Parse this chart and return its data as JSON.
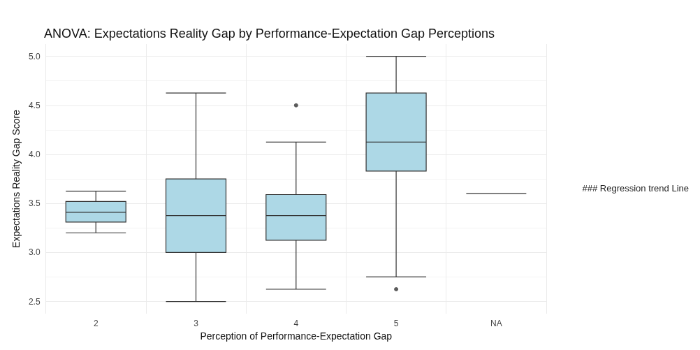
{
  "chart_data": {
    "type": "box",
    "title": "ANOVA: Expectations Reality Gap by Performance-Expectation Gap Perceptions",
    "xlabel": "Perception of Performance-Expectation Gap",
    "ylabel": "Expectations Reality Gap Score",
    "categories": [
      "2",
      "3",
      "4",
      "5",
      "NA"
    ],
    "boxes": [
      {
        "low": 3.2,
        "q1": 3.31,
        "median": 3.41,
        "q3": 3.52,
        "high": 3.625
      },
      {
        "low": 2.5,
        "q1": 3.0,
        "median": 3.375,
        "q3": 3.75,
        "high": 4.625
      },
      {
        "low": 2.625,
        "q1": 3.125,
        "median": 3.375,
        "q3": 3.59,
        "high": 4.125,
        "outliers": [
          4.5
        ]
      },
      {
        "low": 2.75,
        "q1": 3.83,
        "median": 4.125,
        "q3": 4.625,
        "high": 5.0,
        "outliers": [
          2.625
        ]
      },
      {
        "low": 3.6,
        "q1": 3.6,
        "median": 3.6,
        "q3": 3.6,
        "high": 3.6
      }
    ],
    "colors": [
      "#add8e6",
      "#add8e6",
      "#add8e6",
      "#add8e6",
      "#333333"
    ],
    "ylim": [
      2.375,
      5.125
    ],
    "yticks": [
      2.5,
      {
        "value": 3,
        "label": "3.0"
      },
      3.5,
      {
        "value": 4,
        "label": "4.0"
      },
      4.5,
      {
        "value": 5,
        "label": "5.0"
      }
    ],
    "grid": true,
    "annotations": [
      "### Regression trend Line"
    ]
  }
}
